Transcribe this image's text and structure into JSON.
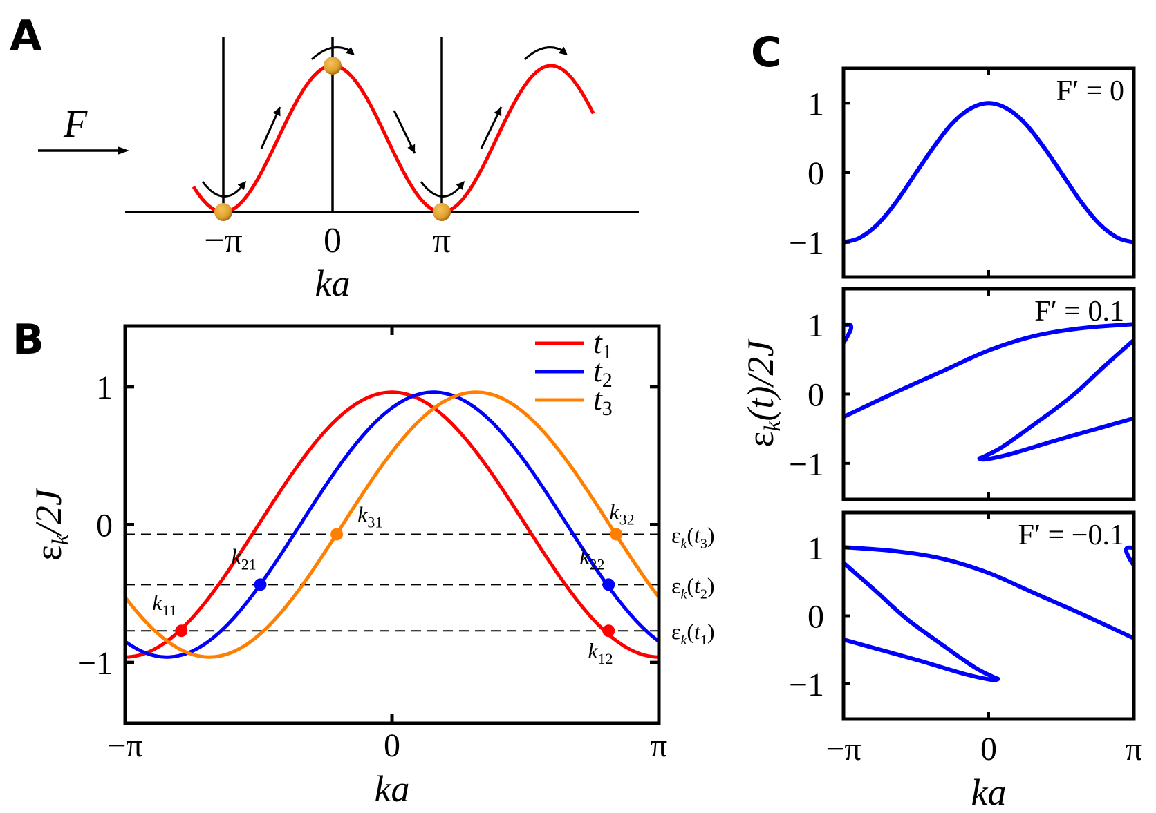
{
  "figure": {
    "panel_labels": {
      "a": "A",
      "b": "B",
      "c": "C"
    }
  },
  "chart_data": [
    {
      "panel": "A",
      "type": "line",
      "title": "",
      "force_label": "F",
      "xlabel": "ka",
      "xtick_labels": [
        "−π",
        "0",
        "π"
      ],
      "xticks": [
        -3.14159,
        0,
        3.14159
      ],
      "xlim": [
        -5.2,
        9.2
      ],
      "series": [
        {
          "name": "band",
          "color": "#ff0000",
          "function": "1 - cos(k) inverted: energy = (1+cos k)/2 shape",
          "x_range": [
            -4.0,
            7.5
          ]
        }
      ],
      "particles": [
        {
          "k": -3.14159,
          "level": "bottom"
        },
        {
          "k": 0,
          "level": "top"
        },
        {
          "k": 3.14159,
          "level": "bottom"
        }
      ],
      "particle_color": "#e0a030",
      "motion_arrows": [
        "curl-at-minus-pi",
        "up-slope-left",
        "curl-at-zero",
        "down-slope",
        "curl-at-pi",
        "up-slope-right",
        "curl-at-2pi"
      ]
    },
    {
      "panel": "B",
      "type": "line",
      "title": "",
      "xlabel": "ka",
      "ylabel": "ε_k/2J",
      "ylabel_parts": {
        "main": "ε",
        "sub": "k",
        "rest": "/2J"
      },
      "xlim": [
        -3.14159,
        3.14159
      ],
      "ylim": [
        -1.44,
        1.44
      ],
      "xticks": [
        -3.14159,
        0,
        3.14159
      ],
      "xtick_labels": [
        "−π",
        "0",
        "π"
      ],
      "yticks": [
        -1,
        0,
        1
      ],
      "ytick_labels": [
        "−1",
        "0",
        "1"
      ],
      "amplitude": 0.96,
      "series": [
        {
          "name": "t1",
          "label_main": "t",
          "label_sub": "1",
          "color": "#ff0000",
          "phase_shift": 0.0
        },
        {
          "name": "t2",
          "label_main": "t",
          "label_sub": "2",
          "color": "#0000ff",
          "phase_shift": 0.49
        },
        {
          "name": "t3",
          "label_main": "t",
          "label_sub": "3",
          "color": "#ff8000",
          "phase_shift": 0.99
        }
      ],
      "legend": "top-right",
      "energy_levels": [
        {
          "name": "eps_t3",
          "value": -0.07,
          "label_main": "ε",
          "label_sub": "k",
          "label_arg": "t",
          "label_arg_sub": "3"
        },
        {
          "name": "eps_t2",
          "value": -0.435,
          "label_main": "ε",
          "label_sub": "k",
          "label_arg": "t",
          "label_arg_sub": "2"
        },
        {
          "name": "eps_t1",
          "value": -0.77,
          "label_main": "ε",
          "label_sub": "k",
          "label_arg": "t",
          "label_arg_sub": "1"
        }
      ],
      "points": [
        {
          "name": "k11",
          "label": "k",
          "sub": "11",
          "x": -2.48,
          "y": -0.77,
          "color": "#ff0000",
          "label_pos": "above-left"
        },
        {
          "name": "k12",
          "label": "k",
          "sub": "12",
          "x": 2.55,
          "y": -0.77,
          "color": "#ff0000",
          "label_pos": "below"
        },
        {
          "name": "k21",
          "label": "k",
          "sub": "21",
          "x": -1.55,
          "y": -0.435,
          "color": "#0000ff",
          "label_pos": "above-left"
        },
        {
          "name": "k22",
          "label": "k",
          "sub": "22",
          "x": 2.55,
          "y": -0.435,
          "color": "#0000ff",
          "label_pos": "above-left"
        },
        {
          "name": "k31",
          "label": "k",
          "sub": "31",
          "x": -0.65,
          "y": -0.07,
          "color": "#ff8000",
          "label_pos": "above-right"
        },
        {
          "name": "k32",
          "label": "k",
          "sub": "32",
          "x": 2.64,
          "y": -0.07,
          "color": "#ff8000",
          "label_pos": "above"
        }
      ]
    },
    {
      "panel": "C",
      "type": "line",
      "xlabel": "ka",
      "ylabel": "ε_k(t)/2J",
      "ylabel_parts": {
        "main": "ε",
        "sub": "k",
        "rest": "(t)/2J"
      },
      "xlim": [
        -3.14159,
        3.14159
      ],
      "xticks": [
        -3.14159,
        0,
        3.14159
      ],
      "xtick_labels": [
        "−π",
        "0",
        "π"
      ],
      "yticks": [
        -1,
        0,
        1
      ],
      "ytick_labels": [
        "−1",
        "0",
        "1"
      ],
      "color": "#0000ff",
      "subplots": [
        {
          "name": "F0",
          "annotation": "F′ = 0",
          "ylim": [
            -1.5,
            1.5
          ],
          "curves": [
            {
              "points": [
                [
                  -3.1416,
                  -1.0
                ],
                [
                  -2.8,
                  -0.94
                ],
                [
                  -2.4,
                  -0.74
                ],
                [
                  -2.0,
                  -0.42
                ],
                [
                  -1.6,
                  -0.03
                ],
                [
                  -1.2,
                  0.36
                ],
                [
                  -0.8,
                  0.7
                ],
                [
                  -0.4,
                  0.92
                ],
                [
                  0,
                  1.0
                ],
                [
                  0.4,
                  0.92
                ],
                [
                  0.8,
                  0.7
                ],
                [
                  1.2,
                  0.36
                ],
                [
                  1.6,
                  -0.03
                ],
                [
                  2.0,
                  -0.42
                ],
                [
                  2.4,
                  -0.74
                ],
                [
                  2.8,
                  -0.94
                ],
                [
                  3.1416,
                  -1.0
                ]
              ]
            }
          ]
        },
        {
          "name": "F0.1",
          "annotation": "F′ = 0.1",
          "ylim": [
            -1.52,
            1.52
          ],
          "curves": [
            {
              "points": [
                [
                  -3.1416,
                  -0.33
                ],
                [
                  -2.0,
                  0.03
                ],
                [
                  -1.0,
                  0.33
                ],
                [
                  0,
                  0.63
                ],
                [
                  1.0,
                  0.84
                ],
                [
                  2.0,
                  0.95
                ],
                [
                  3.1416,
                  1.01
                ]
              ]
            },
            {
              "points": [
                [
                  3.1416,
                  0.78
                ],
                [
                  2.5,
                  0.4
                ],
                [
                  1.8,
                  -0.03
                ],
                [
                  1.0,
                  -0.43
                ],
                [
                  0.3,
                  -0.76
                ],
                [
                  -0.1,
                  -0.9
                ],
                [
                  -0.2,
                  -0.93
                ],
                [
                  -0.05,
                  -0.94
                ],
                [
                  0.5,
                  -0.86
                ],
                [
                  1.5,
                  -0.66
                ],
                [
                  2.4,
                  -0.49
                ],
                [
                  3.1416,
                  -0.35
                ]
              ]
            },
            {
              "points": [
                [
                  -3.1416,
                  1.0
                ],
                [
                  -3.0,
                  1.0
                ],
                [
                  -2.98,
                  0.94
                ],
                [
                  -3.05,
                  0.84
                ],
                [
                  -3.1416,
                  0.74
                ]
              ]
            }
          ]
        },
        {
          "name": "F-0.1",
          "annotation": "F′ = −0.1",
          "ylim": [
            -1.52,
            1.52
          ],
          "curves": [
            {
              "points": [
                [
                  3.1416,
                  -0.33
                ],
                [
                  2.0,
                  0.03
                ],
                [
                  1.0,
                  0.33
                ],
                [
                  0,
                  0.63
                ],
                [
                  -1.0,
                  0.84
                ],
                [
                  -2.0,
                  0.95
                ],
                [
                  -3.1416,
                  1.01
                ]
              ]
            },
            {
              "points": [
                [
                  -3.1416,
                  0.78
                ],
                [
                  -2.5,
                  0.4
                ],
                [
                  -1.8,
                  -0.03
                ],
                [
                  -1.0,
                  -0.43
                ],
                [
                  -0.3,
                  -0.76
                ],
                [
                  0.1,
                  -0.9
                ],
                [
                  0.2,
                  -0.93
                ],
                [
                  0.05,
                  -0.94
                ],
                [
                  -0.5,
                  -0.86
                ],
                [
                  -1.5,
                  -0.66
                ],
                [
                  -2.4,
                  -0.49
                ],
                [
                  -3.1416,
                  -0.35
                ]
              ]
            },
            {
              "points": [
                [
                  3.1416,
                  1.0
                ],
                [
                  3.0,
                  1.0
                ],
                [
                  2.98,
                  0.94
                ],
                [
                  3.05,
                  0.84
                ],
                [
                  3.1416,
                  0.74
                ]
              ]
            }
          ]
        }
      ]
    }
  ]
}
